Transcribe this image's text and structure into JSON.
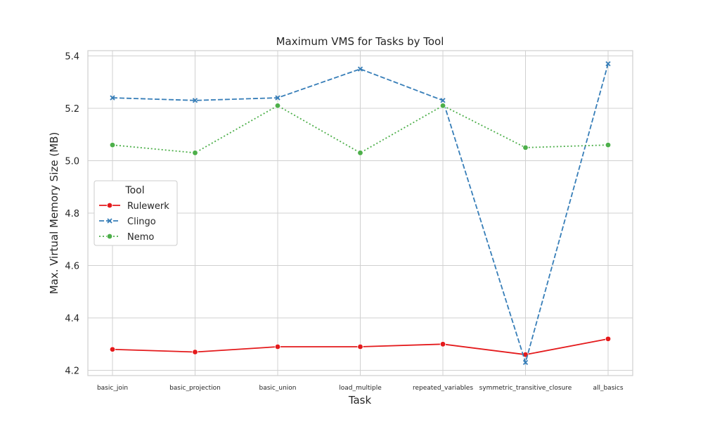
{
  "chart_data": {
    "type": "line",
    "title": "Maximum VMS for Tasks by Tool",
    "xlabel": "Task",
    "ylabel": "Max. Virtual Memory Size (MB)",
    "categories": [
      "basic_join",
      "basic_projection",
      "basic_union",
      "load_multiple",
      "repeated_variables",
      "symmetric_transitive_closure",
      "all_basics"
    ],
    "ylim": [
      4.18,
      5.42
    ],
    "yticks": [
      4.2,
      4.4,
      4.6,
      4.8,
      5.0,
      5.2,
      5.4
    ],
    "ytick_labels": [
      "4.2",
      "4.4",
      "4.6",
      "4.8",
      "5.0",
      "5.2",
      "5.4"
    ],
    "grid": true,
    "legend": {
      "title": "Tool",
      "placement": "center-left"
    },
    "series": [
      {
        "name": "Rulewerk",
        "color": "#e41a1c",
        "dash": "solid",
        "marker": "circle",
        "values": [
          4.28,
          4.27,
          4.29,
          4.29,
          4.3,
          4.26,
          4.32
        ]
      },
      {
        "name": "Clingo",
        "color": "#377eb8",
        "dash": "dashed",
        "marker": "x",
        "values": [
          5.24,
          5.23,
          5.24,
          5.35,
          5.23,
          4.23,
          5.37
        ]
      },
      {
        "name": "Nemo",
        "color": "#4daf4a",
        "dash": "dotted",
        "marker": "circle",
        "values": [
          5.06,
          5.03,
          5.21,
          5.03,
          5.21,
          5.05,
          5.06
        ]
      }
    ]
  }
}
